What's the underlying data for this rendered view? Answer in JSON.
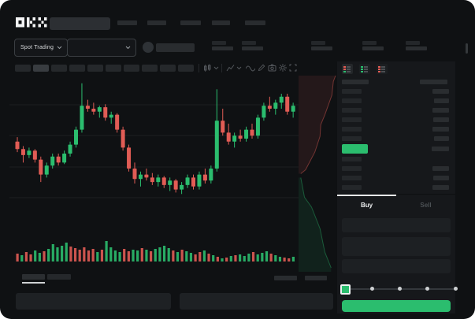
{
  "app": {
    "logo_text": "OKX"
  },
  "colors": {
    "green": "#2bbd6e",
    "red": "#e15c55",
    "window_bg": "#0f1113",
    "panel_bg": "#16181b",
    "placeholder": "#292c2f",
    "placeholder_dim": "#24272a",
    "text": "#eceeef",
    "text_dim": "#4b5054",
    "grid": "#1c1f22",
    "icon": "#54585c"
  },
  "header": {
    "nav_placeholder_count": 5,
    "search_placeholder": ""
  },
  "market_bar": {
    "market_type_label": "Spot Trading",
    "ticker_stat_count": 5
  },
  "toolbar": {
    "timeframe_count": 10,
    "active_timeframe_index": 1
  },
  "order_book": {
    "view_modes": [
      "combined",
      "bids",
      "asks"
    ],
    "header": {
      "left_w": 34,
      "right_w": 35
    },
    "asks": [
      {
        "l": 25,
        "r": 21
      },
      {
        "l": 25,
        "r": 19
      },
      {
        "l": 25,
        "r": 21
      },
      {
        "l": 25,
        "r": 20
      },
      {
        "l": 25,
        "r": 21
      },
      {
        "l": 25,
        "r": 19
      }
    ],
    "last_price": {
      "w": 33,
      "r": 22,
      "direction": "up"
    },
    "bids": [
      {
        "l": 25,
        "r": 0
      },
      {
        "l": 25,
        "r": 21
      },
      {
        "l": 25,
        "r": 20
      },
      {
        "l": 25,
        "r": 21
      }
    ]
  },
  "trade_panel": {
    "tabs": [
      {
        "label": "Buy",
        "active": true
      },
      {
        "label": "Sell",
        "active": false
      }
    ],
    "field_count": 3,
    "slider": {
      "stops": 5,
      "active_stop": 0
    }
  },
  "bottom_tabs": {
    "left_count": 2,
    "active_index": 0,
    "right_count": 2
  },
  "bottom_panel_count": 2,
  "chart_data": {
    "type": "candlestick",
    "ylim": [
      0,
      100
    ],
    "grid": true,
    "legend_position": "none",
    "candles": [
      [
        58,
        61,
        51,
        53
      ],
      [
        53,
        55,
        44,
        49
      ],
      [
        49,
        54,
        47,
        52
      ],
      [
        52,
        53,
        44,
        46
      ],
      [
        46,
        48,
        31,
        36
      ],
      [
        36,
        44,
        34,
        42
      ],
      [
        42,
        50,
        40,
        48
      ],
      [
        48,
        50,
        42,
        44
      ],
      [
        44,
        52,
        43,
        50
      ],
      [
        50,
        58,
        48,
        56
      ],
      [
        56,
        68,
        54,
        66
      ],
      [
        66,
        97,
        64,
        82
      ],
      [
        82,
        86,
        78,
        80
      ],
      [
        80,
        84,
        76,
        78
      ],
      [
        78,
        82,
        74,
        81
      ],
      [
        81,
        83,
        72,
        74
      ],
      [
        74,
        78,
        70,
        76
      ],
      [
        76,
        77,
        64,
        66
      ],
      [
        66,
        68,
        52,
        54
      ],
      [
        54,
        56,
        38,
        40
      ],
      [
        40,
        44,
        30,
        33
      ],
      [
        33,
        38,
        28,
        36
      ],
      [
        36,
        40,
        32,
        34
      ],
      [
        34,
        37,
        29,
        31
      ],
      [
        31,
        36,
        28,
        34
      ],
      [
        34,
        35,
        27,
        29
      ],
      [
        29,
        34,
        25,
        32
      ],
      [
        32,
        33,
        24,
        26
      ],
      [
        26,
        31,
        23,
        29
      ],
      [
        29,
        36,
        27,
        34
      ],
      [
        34,
        36,
        26,
        28
      ],
      [
        28,
        38,
        26,
        36
      ],
      [
        36,
        40,
        30,
        32
      ],
      [
        32,
        42,
        30,
        40
      ],
      [
        40,
        93,
        38,
        72
      ],
      [
        72,
        80,
        62,
        64
      ],
      [
        64,
        70,
        56,
        58
      ],
      [
        58,
        64,
        54,
        62
      ],
      [
        62,
        66,
        58,
        60
      ],
      [
        60,
        68,
        58,
        66
      ],
      [
        66,
        70,
        60,
        62
      ],
      [
        62,
        76,
        60,
        74
      ],
      [
        74,
        84,
        72,
        82
      ],
      [
        82,
        88,
        78,
        80
      ],
      [
        80,
        86,
        76,
        84
      ],
      [
        84,
        90,
        80,
        88
      ],
      [
        88,
        90,
        76,
        78
      ],
      [
        78,
        84,
        74,
        82
      ]
    ],
    "volume": [
      [
        10,
        0
      ],
      [
        8,
        1
      ],
      [
        12,
        0
      ],
      [
        9,
        0
      ],
      [
        14,
        1
      ],
      [
        11,
        1
      ],
      [
        13,
        0
      ],
      [
        16,
        1
      ],
      [
        22,
        1
      ],
      [
        18,
        1
      ],
      [
        20,
        1
      ],
      [
        24,
        1
      ],
      [
        19,
        0
      ],
      [
        17,
        0
      ],
      [
        15,
        0
      ],
      [
        18,
        0
      ],
      [
        14,
        0
      ],
      [
        16,
        0
      ],
      [
        12,
        1
      ],
      [
        15,
        0
      ],
      [
        26,
        1
      ],
      [
        18,
        1
      ],
      [
        14,
        1
      ],
      [
        12,
        1
      ],
      [
        16,
        0
      ],
      [
        13,
        0
      ],
      [
        15,
        1
      ],
      [
        14,
        1
      ],
      [
        17,
        0
      ],
      [
        15,
        1
      ],
      [
        13,
        0
      ],
      [
        16,
        1
      ],
      [
        18,
        1
      ],
      [
        20,
        1
      ],
      [
        17,
        1
      ],
      [
        14,
        0
      ],
      [
        12,
        1
      ],
      [
        15,
        0
      ],
      [
        13,
        1
      ],
      [
        11,
        1
      ],
      [
        9,
        0
      ],
      [
        12,
        0
      ],
      [
        14,
        1
      ],
      [
        10,
        0
      ],
      [
        8,
        1
      ],
      [
        6,
        0
      ],
      [
        4,
        1
      ],
      [
        5,
        0
      ],
      [
        7,
        1
      ],
      [
        8,
        0
      ],
      [
        9,
        1
      ],
      [
        7,
        1
      ],
      [
        10,
        1
      ],
      [
        12,
        0
      ],
      [
        9,
        1
      ],
      [
        11,
        1
      ],
      [
        13,
        1
      ],
      [
        10,
        0
      ],
      [
        8,
        1
      ],
      [
        6,
        1
      ],
      [
        5,
        0
      ],
      [
        4,
        0
      ],
      [
        6,
        1
      ]
    ],
    "depth": {
      "asks_poly": [
        [
          0,
          0
        ],
        [
          1,
          0
        ],
        [
          0.94,
          0.03
        ],
        [
          0.9,
          0.1
        ],
        [
          0.71,
          0.2
        ],
        [
          0.6,
          0.25
        ],
        [
          0.58,
          0.31
        ],
        [
          0.44,
          0.39
        ],
        [
          0.19,
          0.48
        ],
        [
          0.06,
          0.5
        ],
        [
          0,
          0.5
        ]
      ],
      "bids_poly": [
        [
          0,
          0.52
        ],
        [
          0.06,
          0.52
        ],
        [
          0.16,
          0.62
        ],
        [
          0.35,
          0.67
        ],
        [
          0.58,
          0.78
        ],
        [
          0.71,
          0.9
        ],
        [
          0.88,
          0.98
        ],
        [
          0.88,
          1.0
        ],
        [
          0,
          1.0
        ]
      ]
    }
  }
}
